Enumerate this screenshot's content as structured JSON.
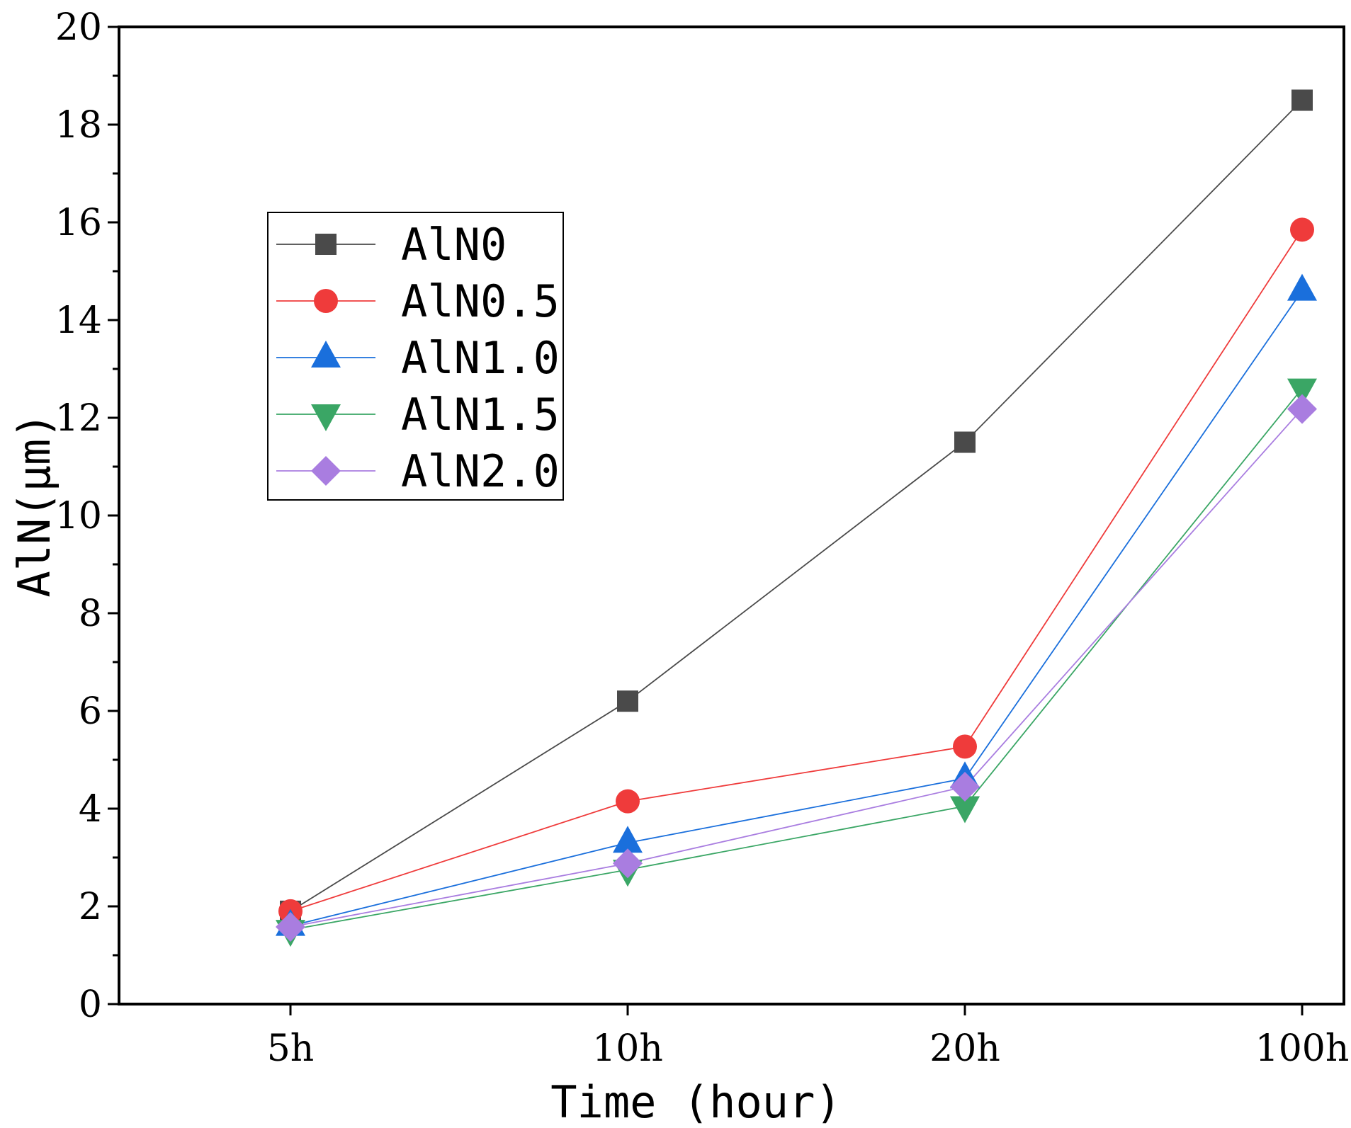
{
  "chart_data": {
    "type": "line",
    "title": "",
    "xlabel": "Time (hour)",
    "ylabel": "AlN(μm)",
    "categories": [
      "5h",
      "10h",
      "20h",
      "100h"
    ],
    "ylim": [
      0,
      20
    ],
    "yticks": [
      "0",
      "2",
      "4",
      "6",
      "8",
      "10",
      "12",
      "14",
      "16",
      "18",
      "20"
    ],
    "grid": false,
    "legend_position": "upper-left",
    "series": [
      {
        "name": "AlN0",
        "marker": "square",
        "color": "#4a4a4a",
        "values": [
          1.9,
          6.2,
          11.5,
          18.5
        ]
      },
      {
        "name": "AlN0.5",
        "marker": "circle",
        "color": "#ef3b3b",
        "values": [
          1.9,
          4.15,
          5.27,
          15.85
        ]
      },
      {
        "name": "AlN1.0",
        "marker": "triangle-up",
        "color": "#1a6fdc",
        "values": [
          1.6,
          3.3,
          4.62,
          14.6
        ]
      },
      {
        "name": "AlN1.5",
        "marker": "triangle-down",
        "color": "#3aa665",
        "values": [
          1.52,
          2.75,
          4.05,
          12.6
        ]
      },
      {
        "name": "AlN2.0",
        "marker": "diamond",
        "color": "#a97de0",
        "values": [
          1.58,
          2.88,
          4.45,
          12.18
        ]
      }
    ]
  }
}
